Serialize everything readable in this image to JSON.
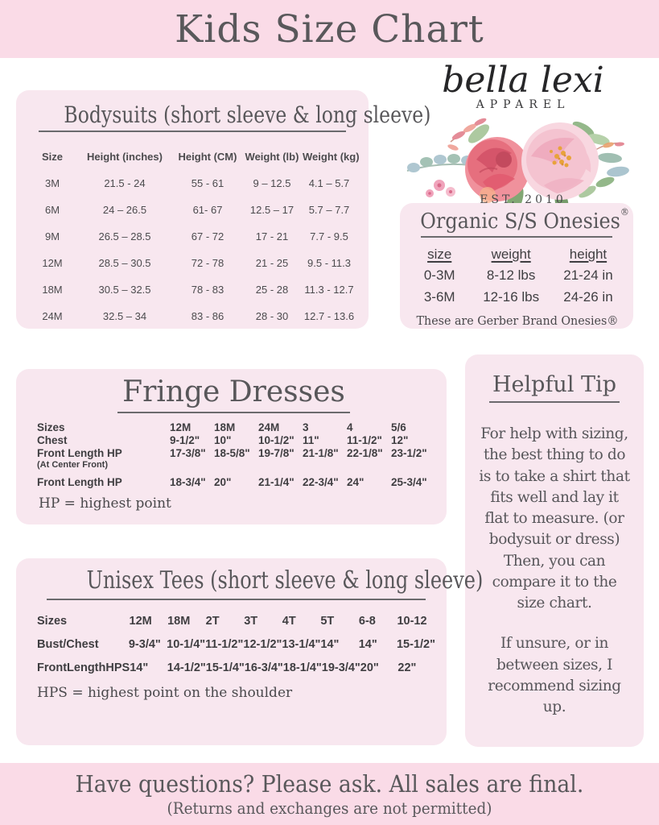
{
  "page": {
    "title": "Kids Size Chart",
    "footer_line1": "Have questions? Please ask. All sales are final.",
    "footer_line2": "(Returns and exchanges are not permitted)"
  },
  "colors": {
    "banner_pink": "#fadbe7",
    "box_pink": "#f8e7ef",
    "text_gray": "#59585b"
  },
  "logo": {
    "name": "bella lexi",
    "subtitle": "APPAREL",
    "established": "EST. 2010"
  },
  "bodysuits": {
    "title": "Bodysuits (short sleeve & long sleeve)",
    "headers": [
      "Size",
      "Height (inches)",
      "Height (CM)",
      "Weight (lb)",
      "Weight (kg)"
    ],
    "rows": [
      [
        "3M",
        "21.5 - 24",
        "55 - 61",
        "9 – 12.5",
        "4.1 – 5.7"
      ],
      [
        "6M",
        "24 – 26.5",
        "61- 67",
        "12.5 – 17",
        "5.7 – 7.7"
      ],
      [
        "9M",
        "26.5 – 28.5",
        "67 - 72",
        "17 - 21",
        "7.7 - 9.5"
      ],
      [
        "12M",
        "28.5 – 30.5",
        "72 - 78",
        "21 - 25",
        "9.5 - 11.3"
      ],
      [
        "18M",
        "30.5 – 32.5",
        "78 - 83",
        "25 - 28",
        "11.3 - 12.7"
      ],
      [
        "24M",
        "32.5 – 34",
        "83 - 86",
        "28 - 30",
        "12.7 - 13.6"
      ]
    ]
  },
  "onesies": {
    "title": "Organic S/S Onesies",
    "registered": "®",
    "headers": [
      "size",
      "weight",
      "height"
    ],
    "rows": [
      [
        "0-3M",
        "8-12 lbs",
        "21-24 in"
      ],
      [
        "3-6M",
        "12-16 lbs",
        "24-26 in"
      ]
    ],
    "note": "These are Gerber Brand Onesies®"
  },
  "fringe": {
    "title": "Fringe Dresses",
    "rows": [
      [
        "Sizes",
        "12M",
        "18M",
        "24M",
        "3",
        "4",
        "5/6"
      ],
      [
        "Chest",
        "9-1/2\"",
        "10\"",
        "10-1/2\"",
        "11\"",
        "11-1/2\"",
        "12\""
      ],
      [
        "Front Length HP",
        "17-3/8\"",
        "18-5/8\"",
        "19-7/8\"",
        "21-1/8\"",
        "22-1/8\"",
        "23-1/2\""
      ],
      [
        "(At Center Front)",
        "",
        "",
        "",
        "",
        "",
        ""
      ],
      [
        "Front Length HP",
        "18-3/4\"",
        "20\"",
        "21-1/4\"",
        "22-3/4\"",
        "24\"",
        "25-3/4\""
      ]
    ],
    "note": "HP = highest point"
  },
  "helpful_tip": {
    "title": "Helpful Tip",
    "paragraph1": "For help with sizing, the best thing to do is to take a shirt that fits well and lay it flat to measure. (or bodysuit or dress) Then, you can compare it to the size chart.",
    "paragraph2": "If unsure, or in between sizes, I recommend sizing up."
  },
  "unisex": {
    "title": "Unisex Tees (short sleeve & long sleeve)",
    "rows": [
      [
        "Sizes",
        "12M",
        "18M",
        "2T",
        "3T",
        "4T",
        "5T",
        "6-8",
        "10-12"
      ],
      [
        "Bust/Chest",
        "9-3/4\"",
        "10-1/4\"",
        "11-1/2\"",
        "12-1/2\"",
        "13-1/4\"",
        "14\"",
        "14\"",
        "15-1/2\""
      ],
      [
        "FrontLengthHPS",
        "14\"",
        "14-1/2\"",
        "15-1/4\"",
        "16-3/4\"",
        "18-1/4\"",
        "19-3/4\"",
        "20\"",
        "22\""
      ]
    ],
    "note": "HPS = highest point on the shoulder"
  }
}
